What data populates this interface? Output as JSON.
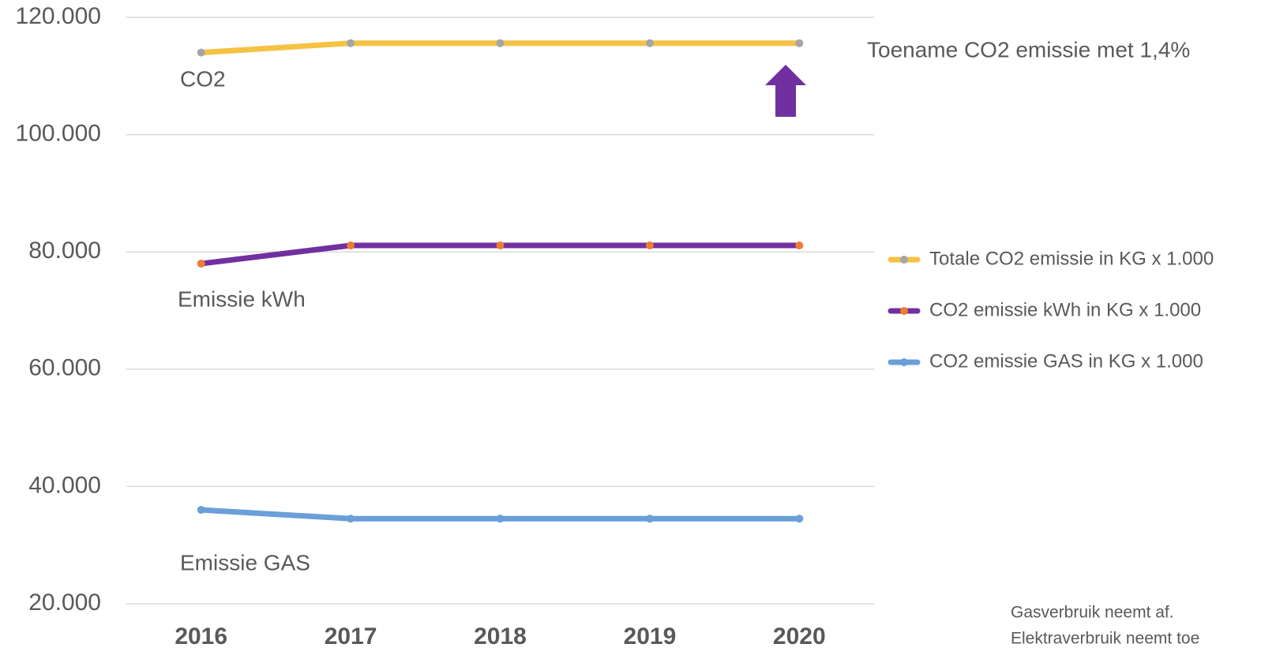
{
  "chart_data": {
    "type": "line",
    "categories": [
      "2016",
      "2017",
      "2018",
      "2019",
      "2020"
    ],
    "series": [
      {
        "name": "Totale CO2 emissie in KG x 1.000",
        "color": "#f5c242",
        "marker_color": "#a5a5a5",
        "values": [
          114000,
          115600,
          115600,
          115600,
          115600
        ]
      },
      {
        "name": "CO2 emissie kWh in KG x 1.000",
        "color": "#7030a0",
        "marker_color": "#ed7d31",
        "values": [
          78000,
          81100,
          81100,
          81100,
          81100
        ]
      },
      {
        "name": "CO2 emissie GAS in KG x 1.000",
        "color": "#6a9fd8",
        "marker_color": "#6a9fd8",
        "values": [
          36000,
          34500,
          34500,
          34500,
          34500
        ]
      }
    ],
    "ylim": [
      20000,
      120000
    ],
    "yticks": [
      {
        "value": 20000,
        "label": "20.000"
      },
      {
        "value": 40000,
        "label": "40.000"
      },
      {
        "value": 60000,
        "label": "60.000"
      },
      {
        "value": 80000,
        "label": "80.000"
      },
      {
        "value": 100000,
        "label": "100.000"
      },
      {
        "value": 120000,
        "label": "120.000"
      }
    ],
    "grid": true,
    "legend": "right",
    "annotations": [
      "CO2",
      "Emissie kWh",
      "Emissie GAS",
      "Toename CO2 emissie met 1,4%"
    ],
    "note": [
      "Gasverbruik neemt af.",
      "Elektraverbruik neemt toe"
    ]
  }
}
